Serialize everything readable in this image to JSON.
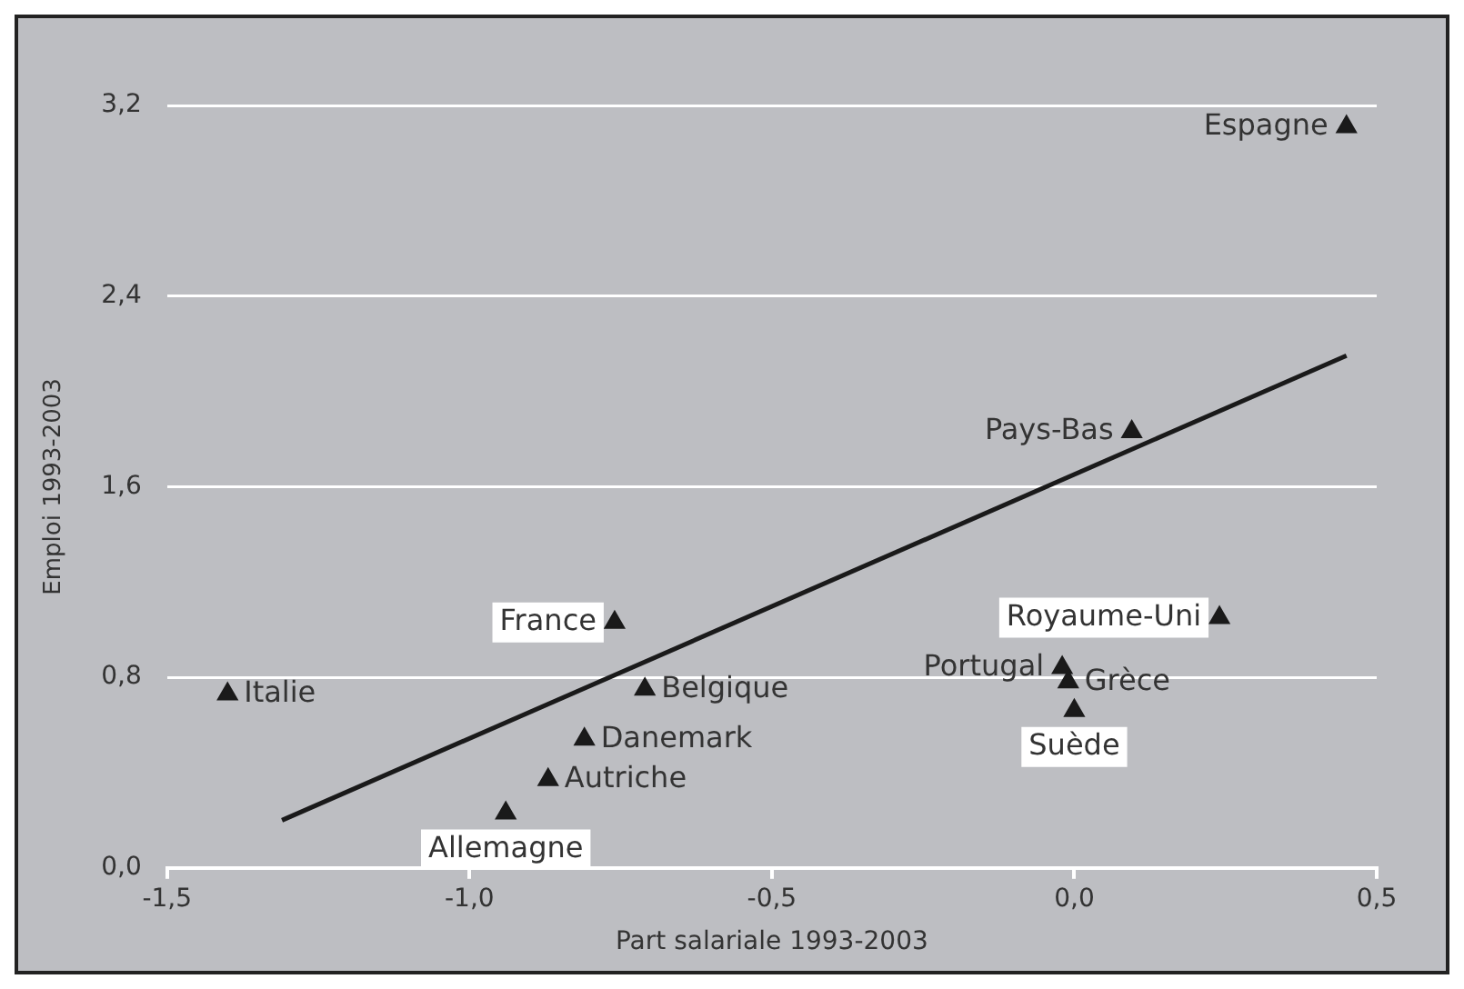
{
  "chart_data": {
    "type": "scatter",
    "xlabel": "Part salariale 1993-2003",
    "ylabel": "Emploi 1993-2003",
    "xlim": [
      -1.5,
      0.5
    ],
    "xticks": [
      {
        "value": -1.5,
        "label": "-1,5"
      },
      {
        "value": -1,
        "label": "-1,0"
      },
      {
        "value": -0.5,
        "label": "-0,5"
      },
      {
        "value": 0,
        "label": "0,0"
      },
      {
        "value": 0.5,
        "label": "0,5"
      }
    ],
    "ylim": [
      0,
      3.2
    ],
    "yticks": [
      {
        "value": 0,
        "label": "0,0"
      },
      {
        "value": 0.8,
        "label": "0,8"
      },
      {
        "value": 1.6,
        "label": "1,6"
      },
      {
        "value": 2.4,
        "label": "2,4"
      },
      {
        "value": 3.2,
        "label": "3,2"
      }
    ],
    "grid": "y",
    "legend": false,
    "marker": "triangle",
    "series": [
      {
        "name": "Espagne",
        "color": "#1a1a1a",
        "x": [
          0.45
        ],
        "values": [
          3.11
        ]
      },
      {
        "name": "Pays-Bas",
        "color": "#1a1a1a",
        "x": [
          0.095
        ],
        "values": [
          1.83
        ]
      },
      {
        "name": "France",
        "color": "#1a1a1a",
        "x": [
          -0.76
        ],
        "values": [
          1.03
        ]
      },
      {
        "name": "Royaume-Uni",
        "color": "#1a1a1a",
        "x": [
          0.24
        ],
        "values": [
          1.05
        ]
      },
      {
        "name": "Portugal",
        "color": "#1a1a1a",
        "x": [
          -0.02
        ],
        "values": [
          0.84
        ]
      },
      {
        "name": "Italie",
        "color": "#1a1a1a",
        "x": [
          -1.4
        ],
        "values": [
          0.73
        ]
      },
      {
        "name": "Belgique",
        "color": "#1a1a1a",
        "x": [
          -0.71
        ],
        "values": [
          0.75
        ]
      },
      {
        "name": "Danemark",
        "color": "#1a1a1a",
        "x": [
          -0.81
        ],
        "values": [
          0.54
        ]
      },
      {
        "name": "Autriche",
        "color": "#1a1a1a",
        "x": [
          -0.87
        ],
        "values": [
          0.37
        ]
      },
      {
        "name": "Grèce",
        "color": "#1a1a1a",
        "x": [
          -0.01
        ],
        "values": [
          0.78
        ]
      },
      {
        "name": "Allemagne",
        "color": "#1a1a1a",
        "x": [
          -0.94
        ],
        "values": [
          0.23
        ]
      },
      {
        "name": "Suède",
        "color": "#1a1a1a",
        "x": [
          0.0
        ],
        "values": [
          0.66
        ]
      },
      {
        "type": "line",
        "color": "#1a1a1a",
        "line_style": "solid",
        "marker": "none",
        "x": [
          -1.31,
          0.45
        ],
        "values": [
          0.2,
          2.15
        ]
      }
    ]
  }
}
